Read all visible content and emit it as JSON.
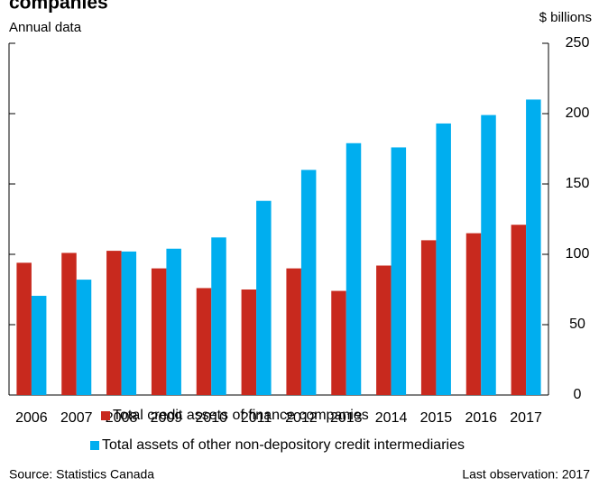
{
  "chart_data": {
    "type": "bar",
    "title": "companies",
    "subtitle": "Annual data",
    "unit_label": "$ billions",
    "categories": [
      "2006",
      "2007",
      "2008",
      "2009",
      "2010",
      "2011",
      "2012",
      "2013",
      "2014",
      "2015",
      "2016",
      "2017"
    ],
    "series": [
      {
        "name": "Total credit assets of finance companies",
        "color": "#c8291e",
        "values": [
          94,
          101,
          102.5,
          90,
          76,
          75,
          90,
          74,
          92,
          110,
          115,
          121
        ]
      },
      {
        "name": "Total assets of other non-depository credit intermediaries",
        "color": "#00aeef",
        "values": [
          70.5,
          82,
          102,
          104,
          112,
          138,
          160,
          179,
          176,
          193,
          199,
          210
        ]
      }
    ],
    "ylim": [
      0,
      250
    ],
    "yticks": [
      0,
      50,
      100,
      150,
      200,
      250
    ],
    "source": "Source: Statistics Canada",
    "note": "Last observation: 2017"
  }
}
